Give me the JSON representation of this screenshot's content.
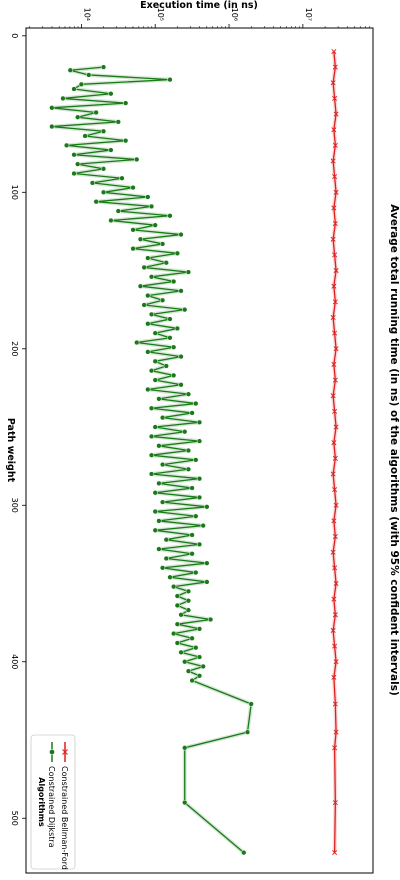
{
  "chart_data": {
    "type": "line",
    "title": "Average total running time (in ns) of the algorithms (with 95% confident intervals)",
    "xlabel": "Path weight",
    "ylabel": "Execution time (in ns)",
    "y_scale": "log",
    "y_ticks": [
      {
        "value": 10000,
        "label": "10⁴"
      },
      {
        "value": 100000,
        "label": "10⁵"
      },
      {
        "value": 1000000,
        "label": "10⁶"
      },
      {
        "value": 10000000,
        "label": "10⁷"
      }
    ],
    "x_ticks": [
      0,
      100,
      200,
      300,
      400,
      500
    ],
    "xlim": [
      -5,
      535
    ],
    "ylim_log10": [
      3.25,
      7.95
    ],
    "grid": false,
    "orientation": "rotated-90",
    "legend": {
      "title": "Algorithms",
      "placement": "bottom-left",
      "entries": [
        {
          "name": "Constrained Dijkstra",
          "color": "#1a7a1a",
          "marker": "circle"
        },
        {
          "name": "Constrained Bellman-Ford",
          "color": "#dd1f1f",
          "marker": "x"
        }
      ]
    },
    "series": [
      {
        "name": "Constrained Dijkstra",
        "color": "#1a7a1a",
        "marker": "circle",
        "points": [
          [
            20,
            4.3
          ],
          [
            22,
            3.85
          ],
          [
            25,
            4.1
          ],
          [
            28,
            5.2
          ],
          [
            31,
            4.0
          ],
          [
            34,
            3.9
          ],
          [
            37,
            4.4
          ],
          [
            40,
            3.75
          ],
          [
            43,
            4.6
          ],
          [
            46,
            3.6
          ],
          [
            49,
            4.2
          ],
          [
            52,
            3.95
          ],
          [
            55,
            4.5
          ],
          [
            58,
            3.6
          ],
          [
            61,
            4.3
          ],
          [
            64,
            4.05
          ],
          [
            67,
            4.6
          ],
          [
            70,
            3.8
          ],
          [
            73,
            4.4
          ],
          [
            76,
            3.9
          ],
          [
            79,
            4.75
          ],
          [
            82,
            3.95
          ],
          [
            85,
            4.3
          ],
          [
            88,
            3.9
          ],
          [
            91,
            4.55
          ],
          [
            94,
            4.15
          ],
          [
            97,
            4.7
          ],
          [
            100,
            4.3
          ],
          [
            103,
            4.9
          ],
          [
            106,
            4.2
          ],
          [
            109,
            4.95
          ],
          [
            112,
            4.5
          ],
          [
            115,
            5.2
          ],
          [
            118,
            4.4
          ],
          [
            121,
            5.0
          ],
          [
            124,
            4.7
          ],
          [
            127,
            5.35
          ],
          [
            130,
            4.8
          ],
          [
            133,
            5.1
          ],
          [
            136,
            4.7
          ],
          [
            139,
            5.3
          ],
          [
            142,
            4.9
          ],
          [
            145,
            5.15
          ],
          [
            148,
            4.85
          ],
          [
            151,
            5.45
          ],
          [
            154,
            4.95
          ],
          [
            157,
            5.25
          ],
          [
            160,
            4.8
          ],
          [
            163,
            5.35
          ],
          [
            166,
            4.9
          ],
          [
            169,
            5.1
          ],
          [
            172,
            4.85
          ],
          [
            175,
            5.4
          ],
          [
            178,
            4.95
          ],
          [
            181,
            5.2
          ],
          [
            184,
            4.9
          ],
          [
            187,
            5.3
          ],
          [
            190,
            5.0
          ],
          [
            193,
            5.2
          ],
          [
            196,
            4.75
          ],
          [
            199,
            5.25
          ],
          [
            202,
            4.9
          ],
          [
            205,
            5.35
          ],
          [
            208,
            5.0
          ],
          [
            211,
            5.15
          ],
          [
            214,
            4.95
          ],
          [
            217,
            5.25
          ],
          [
            220,
            5.0
          ],
          [
            223,
            5.35
          ],
          [
            226,
            4.9
          ],
          [
            229,
            5.45
          ],
          [
            232,
            5.05
          ],
          [
            235,
            5.55
          ],
          [
            238,
            4.95
          ],
          [
            241,
            5.5
          ],
          [
            244,
            5.1
          ],
          [
            247,
            5.6
          ],
          [
            250,
            5.0
          ],
          [
            253,
            5.4
          ],
          [
            256,
            4.95
          ],
          [
            259,
            5.6
          ],
          [
            262,
            5.05
          ],
          [
            265,
            5.45
          ],
          [
            268,
            4.95
          ],
          [
            271,
            5.55
          ],
          [
            274,
            5.1
          ],
          [
            277,
            5.45
          ],
          [
            280,
            4.95
          ],
          [
            283,
            5.6
          ],
          [
            286,
            5.05
          ],
          [
            289,
            5.5
          ],
          [
            292,
            5.0
          ],
          [
            295,
            5.6
          ],
          [
            298,
            5.1
          ],
          [
            301,
            5.7
          ],
          [
            304,
            5.0
          ],
          [
            307,
            5.55
          ],
          [
            310,
            5.05
          ],
          [
            313,
            5.65
          ],
          [
            316,
            5.0
          ],
          [
            319,
            5.5
          ],
          [
            322,
            5.15
          ],
          [
            325,
            5.6
          ],
          [
            328,
            5.05
          ],
          [
            331,
            5.5
          ],
          [
            334,
            5.15
          ],
          [
            337,
            5.7
          ],
          [
            340,
            5.1
          ],
          [
            343,
            5.55
          ],
          [
            346,
            5.2
          ],
          [
            349,
            5.7
          ],
          [
            352,
            5.25
          ],
          [
            355,
            5.45
          ],
          [
            358,
            5.3
          ],
          [
            361,
            5.45
          ],
          [
            364,
            5.3
          ],
          [
            367,
            5.45
          ],
          [
            370,
            5.35
          ],
          [
            373,
            5.75
          ],
          [
            376,
            5.3
          ],
          [
            379,
            5.6
          ],
          [
            382,
            5.25
          ],
          [
            385,
            5.5
          ],
          [
            388,
            5.3
          ],
          [
            391,
            5.55
          ],
          [
            394,
            5.35
          ],
          [
            397,
            5.6
          ],
          [
            400,
            5.4
          ],
          [
            403,
            5.65
          ],
          [
            406,
            5.45
          ],
          [
            409,
            5.6
          ],
          [
            412,
            5.5
          ],
          [
            427,
            6.3
          ],
          [
            445,
            6.25
          ],
          [
            455,
            5.4
          ],
          [
            490,
            5.4
          ],
          [
            522,
            6.2
          ]
        ]
      },
      {
        "name": "Constrained Bellman-Ford",
        "color": "#dd1f1f",
        "marker": "x",
        "points": [
          [
            10,
            7.42
          ],
          [
            20,
            7.44
          ],
          [
            30,
            7.41
          ],
          [
            40,
            7.43
          ],
          [
            50,
            7.45
          ],
          [
            60,
            7.42
          ],
          [
            70,
            7.44
          ],
          [
            80,
            7.41
          ],
          [
            90,
            7.43
          ],
          [
            100,
            7.45
          ],
          [
            110,
            7.42
          ],
          [
            120,
            7.44
          ],
          [
            130,
            7.41
          ],
          [
            140,
            7.43
          ],
          [
            150,
            7.45
          ],
          [
            160,
            7.42
          ],
          [
            170,
            7.44
          ],
          [
            180,
            7.41
          ],
          [
            190,
            7.43
          ],
          [
            200,
            7.45
          ],
          [
            210,
            7.42
          ],
          [
            220,
            7.44
          ],
          [
            230,
            7.41
          ],
          [
            240,
            7.43
          ],
          [
            250,
            7.45
          ],
          [
            260,
            7.42
          ],
          [
            270,
            7.44
          ],
          [
            280,
            7.41
          ],
          [
            290,
            7.43
          ],
          [
            300,
            7.45
          ],
          [
            310,
            7.42
          ],
          [
            320,
            7.44
          ],
          [
            330,
            7.41
          ],
          [
            340,
            7.43
          ],
          [
            350,
            7.45
          ],
          [
            360,
            7.42
          ],
          [
            370,
            7.44
          ],
          [
            380,
            7.41
          ],
          [
            390,
            7.43
          ],
          [
            400,
            7.45
          ],
          [
            410,
            7.42
          ],
          [
            427,
            7.44
          ],
          [
            445,
            7.45
          ],
          [
            455,
            7.43
          ],
          [
            490,
            7.44
          ],
          [
            522,
            7.43
          ]
        ]
      }
    ]
  }
}
